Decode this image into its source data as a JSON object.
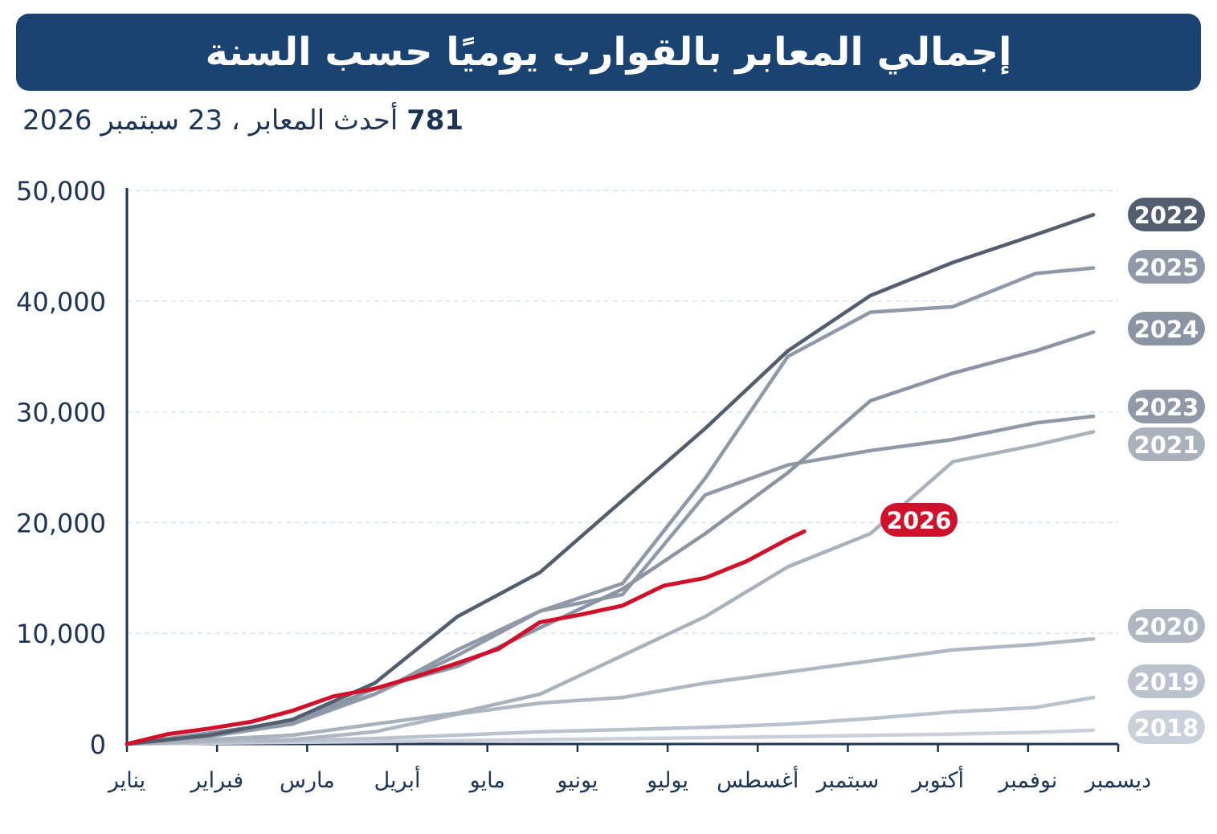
{
  "chart_data": {
    "type": "line",
    "title": "إجمالي المعابر بالقوارب يوميًا حسب السنة",
    "subtitle_count": "781",
    "subtitle_text": "أحدث المعابر ، 23 سبتمبر 2026",
    "xlabel": "",
    "ylabel": "",
    "ylim": [
      0,
      50000
    ],
    "yticks": [
      0,
      10000,
      20000,
      30000,
      40000,
      50000
    ],
    "ytick_labels": [
      "0",
      "10,000",
      "20,000",
      "30,000",
      "40,000",
      "50,000"
    ],
    "xlim": [
      0,
      12
    ],
    "month_labels": [
      "يناير",
      "فبراير",
      "مارس",
      "أبريل",
      "مايو",
      "يونيو",
      "يوليو",
      "أغسطس",
      "سبتمبر",
      "أكتوبر",
      "نوفمبر",
      "ديسمبر"
    ],
    "grid": true,
    "colors": {
      "banner": "#1b4371",
      "highlight": "#d0112b",
      "axis": "#1c3556",
      "grid": "#d4e4f2"
    },
    "series": [
      {
        "name": "2018",
        "color": "#c9d0d9",
        "x": [
          0,
          1,
          2,
          3,
          4,
          5,
          6,
          7,
          8,
          9,
          10,
          11,
          11.7
        ],
        "y": [
          0,
          80,
          150,
          220,
          300,
          390,
          480,
          570,
          660,
          780,
          900,
          1050,
          1250
        ]
      },
      {
        "name": "2019",
        "color": "#bac2cd",
        "x": [
          0,
          1,
          2,
          3,
          4,
          5,
          6,
          7,
          8,
          9,
          10,
          11,
          11.7
        ],
        "y": [
          0,
          150,
          280,
          500,
          800,
          1100,
          1300,
          1500,
          1800,
          2300,
          2900,
          3300,
          4200
        ]
      },
      {
        "name": "2020",
        "color": "#aeb7c2",
        "x": [
          0,
          1,
          2,
          3,
          4,
          5,
          6,
          7,
          8,
          9,
          10,
          11,
          11.7
        ],
        "y": [
          0,
          250,
          400,
          1100,
          2700,
          3700,
          4200,
          5500,
          6500,
          7500,
          8500,
          9000,
          9500
        ]
      },
      {
        "name": "2021",
        "color": "#a9b1bd",
        "x": [
          0,
          1,
          2,
          3,
          4,
          5,
          6,
          7,
          8,
          9,
          10,
          11,
          11.7
        ],
        "y": [
          0,
          400,
          800,
          1800,
          2800,
          4500,
          8000,
          11500,
          16000,
          19000,
          25500,
          27000,
          28200
        ]
      },
      {
        "name": "2023",
        "color": "#8f99a7",
        "x": [
          0,
          1,
          2,
          3,
          4,
          5,
          6,
          7,
          8,
          9,
          10,
          11,
          11.7
        ],
        "y": [
          0,
          800,
          2200,
          4500,
          8000,
          12000,
          13500,
          22500,
          25200,
          26500,
          27500,
          29000,
          29600
        ]
      },
      {
        "name": "2024",
        "color": "#8a94a2",
        "x": [
          0,
          1,
          2,
          3,
          4,
          5,
          6,
          7,
          8,
          9,
          10,
          11,
          11.7
        ],
        "y": [
          0,
          1000,
          2000,
          5000,
          7000,
          10500,
          14000,
          19000,
          24500,
          31000,
          33500,
          35500,
          37200
        ]
      },
      {
        "name": "2025",
        "color": "#8f99a7",
        "x": [
          0,
          1,
          2,
          3,
          4,
          5,
          6,
          7,
          8,
          9,
          10,
          11,
          11.7
        ],
        "y": [
          0,
          700,
          1800,
          4500,
          8500,
          12000,
          14500,
          24000,
          35000,
          39000,
          39500,
          42500,
          43000
        ]
      },
      {
        "name": "2022",
        "color": "#525e6e",
        "x": [
          0,
          1,
          2,
          3,
          4,
          5,
          6,
          7,
          8,
          9,
          10,
          11,
          11.7
        ],
        "y": [
          0,
          800,
          2200,
          5500,
          11500,
          15500,
          22000,
          28500,
          35500,
          40500,
          43500,
          46000,
          47800
        ]
      },
      {
        "name": "2026",
        "color": "#d0112b",
        "highlight": true,
        "x": [
          0,
          0.5,
          1,
          1.5,
          2,
          2.5,
          3,
          3.5,
          4,
          4.5,
          5,
          5.5,
          6,
          6.5,
          7,
          7.5,
          8,
          8.2
        ],
        "y": [
          0,
          900,
          1400,
          2000,
          3000,
          4300,
          5000,
          6100,
          7300,
          8600,
          11000,
          11700,
          12500,
          14300,
          15000,
          16500,
          18500,
          19200
        ]
      }
    ]
  }
}
